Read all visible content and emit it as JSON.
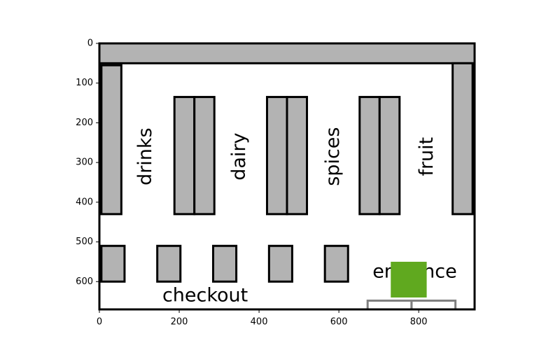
{
  "chart_data": {
    "type": "diagram",
    "xlim": [
      0,
      940
    ],
    "ylim": [
      670,
      0
    ],
    "x_ticks": [
      0,
      200,
      400,
      600,
      800
    ],
    "y_ticks": [
      0,
      100,
      200,
      300,
      400,
      500,
      600
    ],
    "shelf_color": "#b3b3b3",
    "edge_color": "#000000",
    "marker_color": "#60a91f",
    "door_color": "#808080",
    "store_outline": {
      "x": 0,
      "y": 0,
      "w": 940,
      "h": 670
    },
    "top_wall": {
      "x": 0,
      "y": 0,
      "w": 940,
      "h": 50
    },
    "side_shelves": [
      {
        "x": 5,
        "y": 55,
        "w": 50,
        "h": 375
      },
      {
        "x": 885,
        "y": 50,
        "w": 50,
        "h": 380
      }
    ],
    "aisle_shelves": [
      {
        "x": 188,
        "y": 135,
        "w": 50,
        "h": 295
      },
      {
        "x": 238,
        "y": 135,
        "w": 50,
        "h": 295
      },
      {
        "x": 420,
        "y": 135,
        "w": 50,
        "h": 295
      },
      {
        "x": 470,
        "y": 135,
        "w": 50,
        "h": 295
      },
      {
        "x": 652,
        "y": 135,
        "w": 50,
        "h": 295
      },
      {
        "x": 702,
        "y": 135,
        "w": 50,
        "h": 295
      }
    ],
    "checkout_counters": [
      {
        "x": 5,
        "y": 510,
        "w": 58,
        "h": 90
      },
      {
        "x": 145,
        "y": 510,
        "w": 58,
        "h": 90
      },
      {
        "x": 285,
        "y": 510,
        "w": 58,
        "h": 90
      },
      {
        "x": 425,
        "y": 510,
        "w": 58,
        "h": 90
      },
      {
        "x": 565,
        "y": 510,
        "w": 58,
        "h": 90
      }
    ],
    "entrance_marker": {
      "x": 730,
      "y": 550,
      "w": 90,
      "h": 90
    },
    "doors": [
      {
        "x": 672,
        "y": 648,
        "w": 110,
        "h": 22
      },
      {
        "x": 782,
        "y": 648,
        "w": 110,
        "h": 22
      }
    ],
    "aisle_labels": [
      {
        "text": "drinks",
        "x": 115,
        "y": 285
      },
      {
        "text": "dairy",
        "x": 350,
        "y": 285
      },
      {
        "text": "spices",
        "x": 585,
        "y": 285
      },
      {
        "text": "fruit",
        "x": 820,
        "y": 285
      }
    ],
    "area_labels": [
      {
        "text": "checkout",
        "x": 265,
        "y": 635
      },
      {
        "text": "entrance",
        "x": 790,
        "y": 575
      }
    ]
  }
}
